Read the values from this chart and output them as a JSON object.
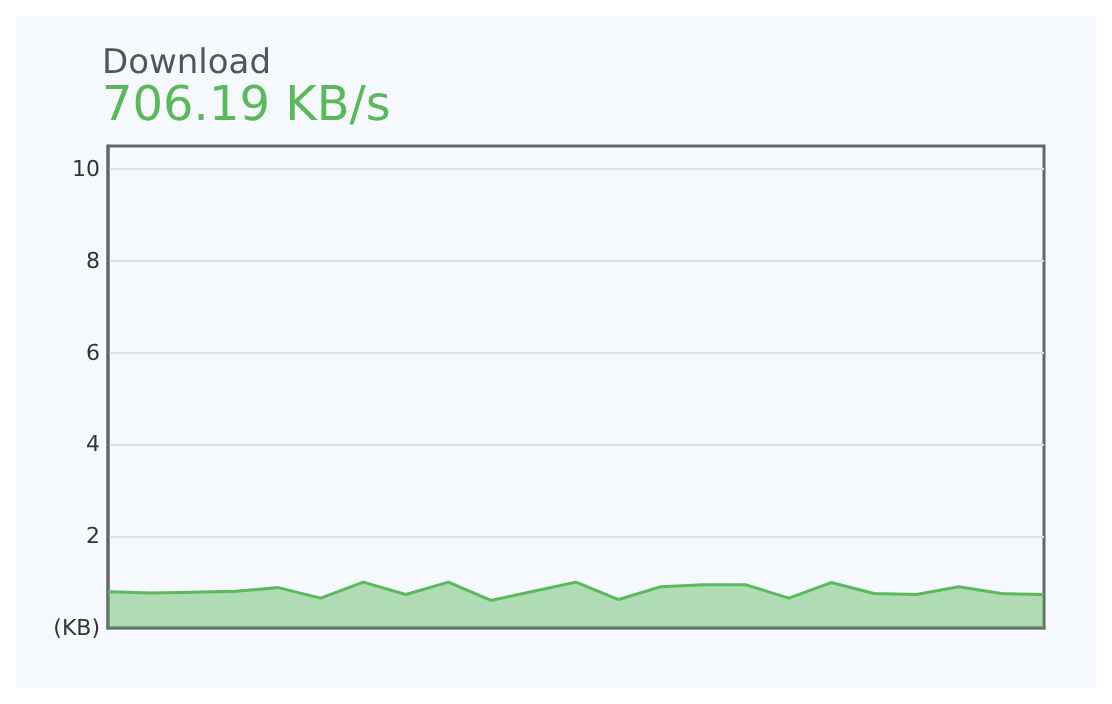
{
  "chart_data": {
    "type": "area",
    "title": "Download",
    "subtitle": "706.19 KB/s",
    "categories": [
      null,
      null,
      null,
      null,
      null,
      null,
      null,
      null,
      null,
      null,
      null,
      null,
      null,
      null,
      null,
      null,
      null,
      null,
      null,
      null,
      null,
      null,
      null
    ],
    "series": [
      {
        "color": "#5cb85c",
        "values": [
          0.79,
          0.76,
          0.78,
          0.8,
          0.88,
          0.65,
          1.0,
          0.73,
          1.0,
          0.6,
          0.8,
          1.0,
          0.62,
          0.9,
          0.94,
          0.94,
          0.65,
          0.99,
          0.75,
          0.73,
          0.9,
          0.75,
          0.73
        ]
      }
    ],
    "ylim": [
      0,
      10.5
    ],
    "yticks": [
      {
        "value": 0,
        "label": "(KB)"
      },
      2,
      4,
      6,
      8,
      10
    ],
    "grid": "y",
    "marker": "none"
  }
}
